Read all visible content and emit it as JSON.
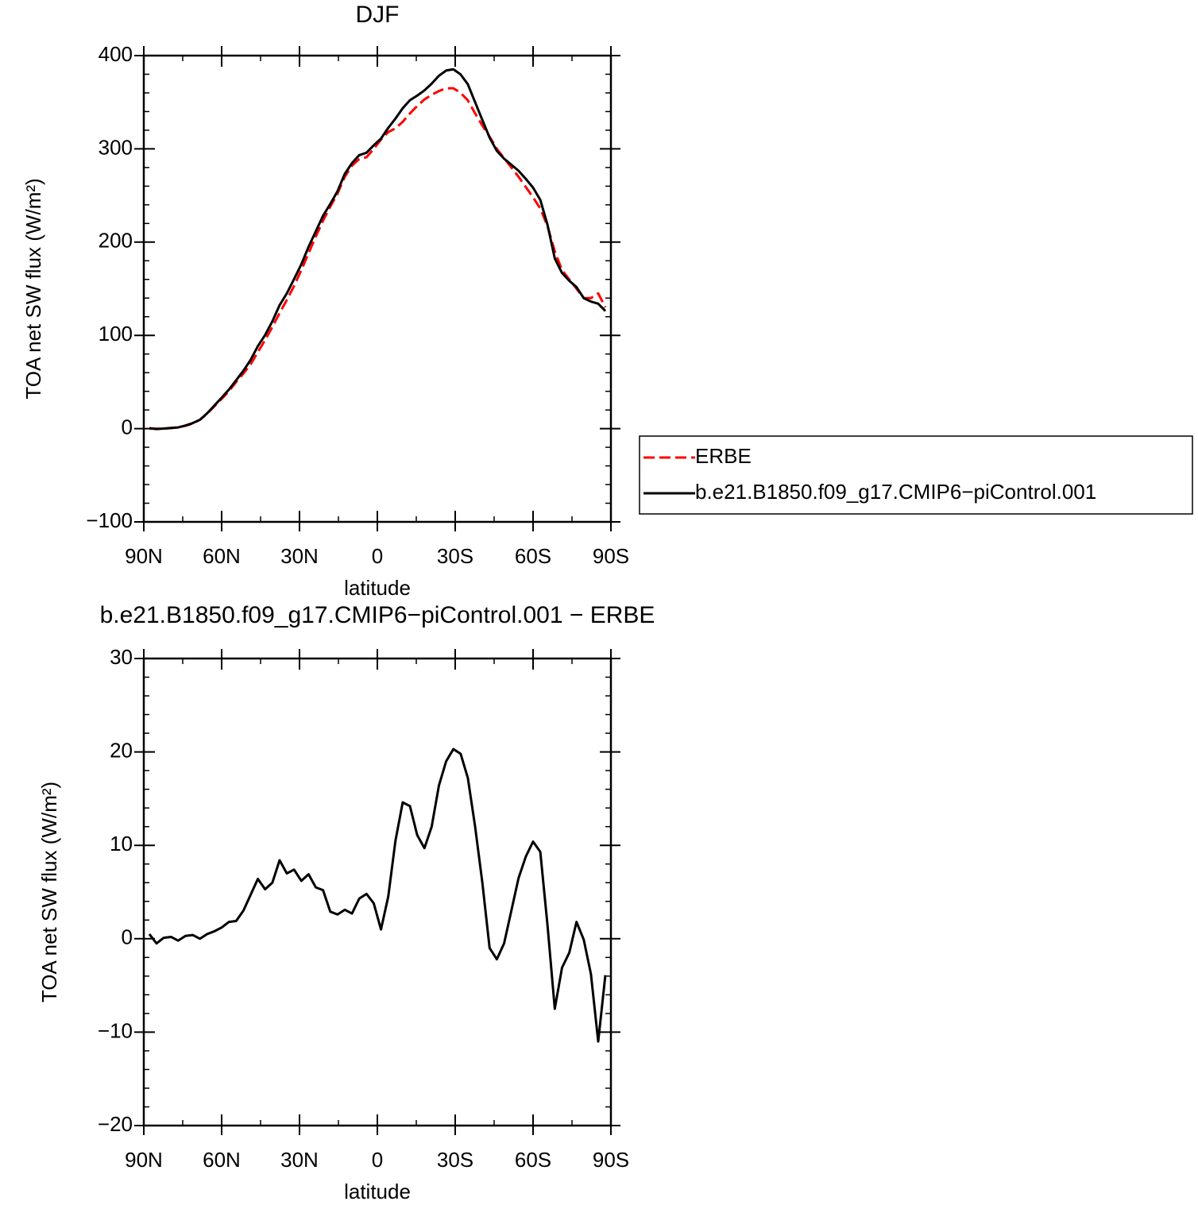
{
  "chart_data": [
    {
      "type": "line",
      "title": "DJF",
      "xlabel": "latitude",
      "ylabel": "TOA net SW flux (W/m²)",
      "x": [
        87.86,
        85.1,
        82.31,
        79.53,
        76.74,
        73.95,
        71.16,
        68.37,
        65.58,
        62.79,
        60.0,
        57.21,
        54.42,
        51.63,
        48.84,
        46.05,
        43.26,
        40.46,
        37.67,
        34.88,
        32.09,
        29.3,
        26.51,
        23.72,
        20.93,
        18.14,
        15.35,
        12.56,
        9.77,
        6.98,
        4.19,
        1.4,
        -1.4,
        -4.19,
        -6.98,
        -9.77,
        -12.56,
        -15.35,
        -18.14,
        -20.93,
        -23.72,
        -26.51,
        -29.3,
        -32.09,
        -34.88,
        -37.67,
        -40.46,
        -43.26,
        -46.05,
        -48.84,
        -51.63,
        -54.42,
        -57.21,
        -60.0,
        -62.79,
        -65.58,
        -68.37,
        -71.16,
        -73.95,
        -76.74,
        -79.53,
        -82.31,
        -85.1,
        -87.86
      ],
      "series": [
        {
          "name": "ERBE",
          "color": "#ff0000",
          "dash": "dashed",
          "values": [
            0,
            0,
            0,
            0.5,
            1.5,
            3,
            5.5,
            9.5,
            16,
            24,
            32,
            40,
            50,
            59,
            69,
            82,
            95,
            109,
            124,
            138,
            153,
            170,
            188,
            206,
            223,
            238,
            252,
            270,
            282,
            289,
            291,
            300,
            310,
            318,
            322,
            329,
            338,
            346,
            353,
            358,
            362,
            365,
            365,
            360,
            352,
            338,
            325,
            313,
            300,
            290,
            280,
            270,
            259,
            248,
            236,
            217,
            190,
            170,
            160,
            150,
            140,
            140,
            145,
            130
          ]
        },
        {
          "name": "b.e21.B1850.f09_g17.CMIP6−piControl.001",
          "color": "#000000",
          "dash": "solid",
          "values": [
            0.5,
            -0.5,
            0.1,
            0.7,
            1.3,
            3.3,
            5.9,
            9.5,
            16.5,
            24.8,
            33.2,
            41.8,
            51.9,
            62,
            73.7,
            88.4,
            100.3,
            115,
            132.4,
            145,
            160.4,
            176.2,
            194.9,
            211.5,
            228.2,
            240.9,
            254.6,
            273.1,
            284.7,
            293.3,
            295.8,
            303.8,
            311,
            322.5,
            332.5,
            343.6,
            352.2,
            357.1,
            362.7,
            370,
            378.4,
            384,
            385.3,
            379.8,
            369.2,
            350,
            331,
            312,
            297.8,
            289.5,
            283,
            276.5,
            267.8,
            258.4,
            245.3,
            218.4,
            182.5,
            166.9,
            158.5,
            151.8,
            139.9,
            136.2,
            134,
            126.1
          ]
        }
      ],
      "xlim": [
        90,
        -90
      ],
      "xticks": [
        {
          "value": 90,
          "label": "90N"
        },
        {
          "value": 60,
          "label": "60N"
        },
        {
          "value": 30,
          "label": "30N"
        },
        0,
        {
          "value": -30,
          "label": "30S"
        },
        {
          "value": -60,
          "label": "60S"
        },
        {
          "value": -90,
          "label": "90S"
        }
      ],
      "xminorticks": [
        75,
        45,
        15,
        -15,
        -45,
        -75
      ],
      "ylim": [
        -100,
        400
      ],
      "yticks": [
        {
          "value": -100,
          "label": "−100"
        },
        0,
        100,
        200,
        300,
        400
      ],
      "yminorticks": [
        -80,
        -60,
        -40,
        -20,
        20,
        40,
        60,
        80,
        120,
        140,
        160,
        180,
        220,
        240,
        260,
        280,
        320,
        340,
        360,
        380
      ],
      "legend": "right"
    },
    {
      "type": "line",
      "title": "b.e21.B1850.f09_g17.CMIP6−piControl.001 − ERBE",
      "xlabel": "latitude",
      "ylabel": "TOA net SW flux (W/m²)",
      "x": [
        87.86,
        85.1,
        82.31,
        79.53,
        76.74,
        73.95,
        71.16,
        68.37,
        65.58,
        62.79,
        60.0,
        57.21,
        54.42,
        51.63,
        48.84,
        46.05,
        43.26,
        40.46,
        37.67,
        34.88,
        32.09,
        29.3,
        26.51,
        23.72,
        20.93,
        18.14,
        15.35,
        12.56,
        9.77,
        6.98,
        4.19,
        1.4,
        -1.4,
        -4.19,
        -6.98,
        -9.77,
        -12.56,
        -15.35,
        -18.14,
        -20.93,
        -23.72,
        -26.51,
        -29.3,
        -32.09,
        -34.88,
        -37.67,
        -40.46,
        -43.26,
        -46.05,
        -48.84,
        -51.63,
        -54.42,
        -57.21,
        -60.0,
        -62.79,
        -65.58,
        -68.37,
        -71.16,
        -73.95,
        -76.74,
        -79.53,
        -82.31,
        -85.1,
        -87.86
      ],
      "series": [
        {
          "color": "#000000",
          "dash": "solid",
          "values": [
            0.5,
            -0.5,
            0.1,
            0.2,
            -0.2,
            0.3,
            0.4,
            0.0,
            0.5,
            0.8,
            1.2,
            1.8,
            1.9,
            3.0,
            4.7,
            6.4,
            5.3,
            6.0,
            8.4,
            7.0,
            7.4,
            6.2,
            6.9,
            5.5,
            5.2,
            2.9,
            2.6,
            3.1,
            2.7,
            4.3,
            4.8,
            3.8,
            1.0,
            4.5,
            10.5,
            14.6,
            14.2,
            11.1,
            9.7,
            12.0,
            16.4,
            19.0,
            20.3,
            19.8,
            17.2,
            12.0,
            6.0,
            -1.0,
            -2.2,
            -0.5,
            3.0,
            6.5,
            8.8,
            10.4,
            9.3,
            1.4,
            -7.5,
            -3.1,
            -1.5,
            1.8,
            -0.1,
            -3.8,
            -11.0,
            -3.9
          ]
        }
      ],
      "xlim": [
        90,
        -90
      ],
      "xticks": [
        {
          "value": 90,
          "label": "90N"
        },
        {
          "value": 60,
          "label": "60N"
        },
        {
          "value": 30,
          "label": "30N"
        },
        0,
        {
          "value": -30,
          "label": "30S"
        },
        {
          "value": -60,
          "label": "60S"
        },
        {
          "value": -90,
          "label": "90S"
        }
      ],
      "xminorticks": [
        75,
        45,
        15,
        -15,
        -45,
        -75
      ],
      "ylim": [
        -20,
        30
      ],
      "yticks": [
        {
          "value": -20,
          "label": "−20"
        },
        {
          "value": -10,
          "label": "−10"
        },
        0,
        10,
        20,
        30
      ],
      "yminorticks": [
        -18,
        -16,
        -14,
        -12,
        -8,
        -6,
        -4,
        -2,
        2,
        4,
        6,
        8,
        12,
        14,
        16,
        18,
        22,
        24,
        26,
        28
      ]
    }
  ]
}
